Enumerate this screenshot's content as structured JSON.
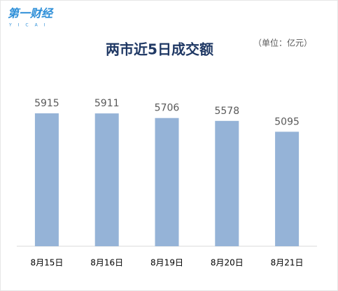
{
  "logo": {
    "text": "第一财经",
    "subtext": "YICAI"
  },
  "chart_data": {
    "type": "bar",
    "title": "两市近5日成交额",
    "unit": "（单位：亿元）",
    "categories": [
      "8月15日",
      "8月16日",
      "8月19日",
      "8月20日",
      "8月21日"
    ],
    "values": [
      5915,
      5911,
      5706,
      5578,
      5095
    ],
    "color": "#95b3d7"
  }
}
